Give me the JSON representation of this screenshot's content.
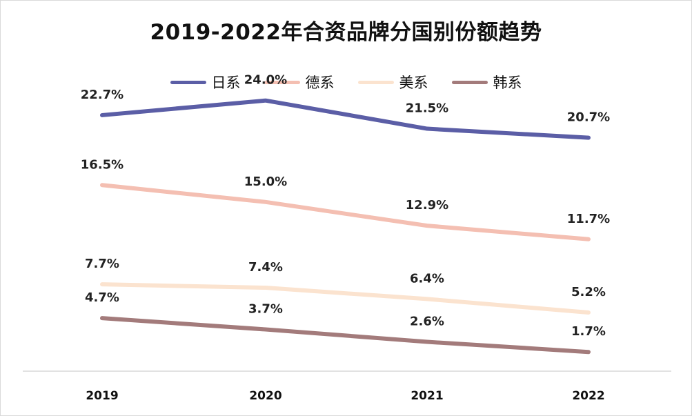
{
  "chart_data": {
    "type": "line",
    "title": "2019-2022年合资品牌分国别份额趋势",
    "categories": [
      "2019",
      "2020",
      "2021",
      "2022"
    ],
    "series": [
      {
        "name": "日系",
        "color": "#5b5ea6",
        "values": [
          22.7,
          24.0,
          21.5,
          20.7
        ],
        "labels": [
          "22.7%",
          "24.0%",
          "21.5%",
          "20.7%"
        ]
      },
      {
        "name": "德系",
        "color": "#f4bfb2",
        "values": [
          16.5,
          15.0,
          12.9,
          11.7
        ],
        "labels": [
          "16.5%",
          "15.0%",
          "12.9%",
          "11.7%"
        ]
      },
      {
        "name": "美系",
        "color": "#fbe3cf",
        "values": [
          7.7,
          7.4,
          6.4,
          5.2
        ],
        "labels": [
          "7.7%",
          "7.4%",
          "6.4%",
          "5.2%"
        ]
      },
      {
        "name": "韩系",
        "color": "#a37b7b",
        "values": [
          4.7,
          3.7,
          2.6,
          1.7
        ],
        "labels": [
          "4.7%",
          "3.7%",
          "2.6%",
          "1.7%"
        ]
      }
    ],
    "xlabel": "",
    "ylabel": "",
    "ylim": [
      0,
      26
    ],
    "grid": false,
    "legend": "top-center"
  }
}
